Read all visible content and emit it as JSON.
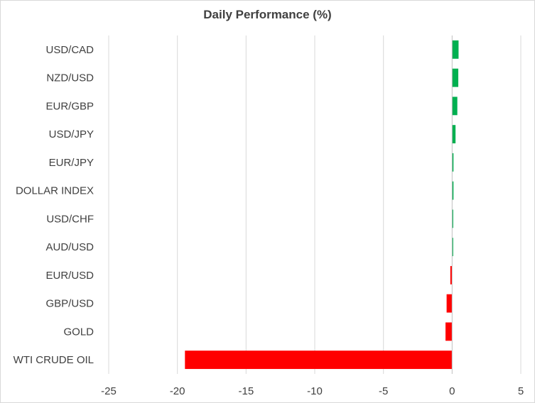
{
  "chart_data": {
    "type": "bar",
    "orientation": "horizontal",
    "title": "Daily Performance (%)",
    "xlabel": "",
    "ylabel": "",
    "categories": [
      "USD/CAD",
      "NZD/USD",
      "EUR/GBP",
      "USD/JPY",
      "EUR/JPY",
      "DOLLAR INDEX",
      "USD/CHF",
      "AUD/USD",
      "EUR/USD",
      "GBP/USD",
      "GOLD",
      "WTI CRUDE OIL"
    ],
    "values": [
      0.47,
      0.45,
      0.38,
      0.25,
      0.1,
      0.1,
      0.08,
      0.04,
      -0.13,
      -0.4,
      -0.48,
      -19.45
    ],
    "xlim": [
      -25,
      5
    ],
    "xticks": [
      "-25",
      "-20",
      "-15",
      "-10",
      "-5",
      "0",
      "5"
    ],
    "grid": "vertical",
    "legend": "none",
    "colors": {
      "positive": "#00b050",
      "negative": "#ff0000",
      "grid": "#d9d9d9",
      "text": "#404040"
    }
  }
}
